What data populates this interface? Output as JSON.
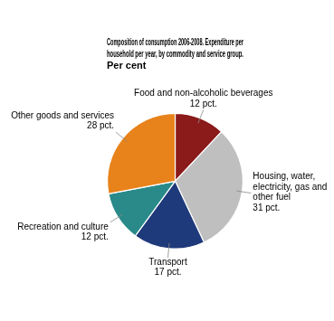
{
  "chart_data": {
    "type": "pie",
    "title": "Composition of consumption 2006-2008. Expenditure per\nhousehold per year, by commodity and service group.\nPer cent",
    "categories": [
      "Food and non-alcoholic beverages",
      "Housing, water,\nelectricity, gas and\nother fuel",
      "Transport",
      "Recreation and culture",
      "Other goods and services"
    ],
    "values": [
      12,
      31,
      17,
      12,
      28
    ],
    "value_labels": [
      "12 pct.",
      "31 pct.",
      "17 pct.",
      "12 pct.",
      "28 pct."
    ],
    "data_labels": true,
    "colors": [
      "#8B1A1A",
      "#BFBFBF",
      "#1F3A7A",
      "#2A8A8A",
      "#E8821A"
    ],
    "legend": false
  }
}
